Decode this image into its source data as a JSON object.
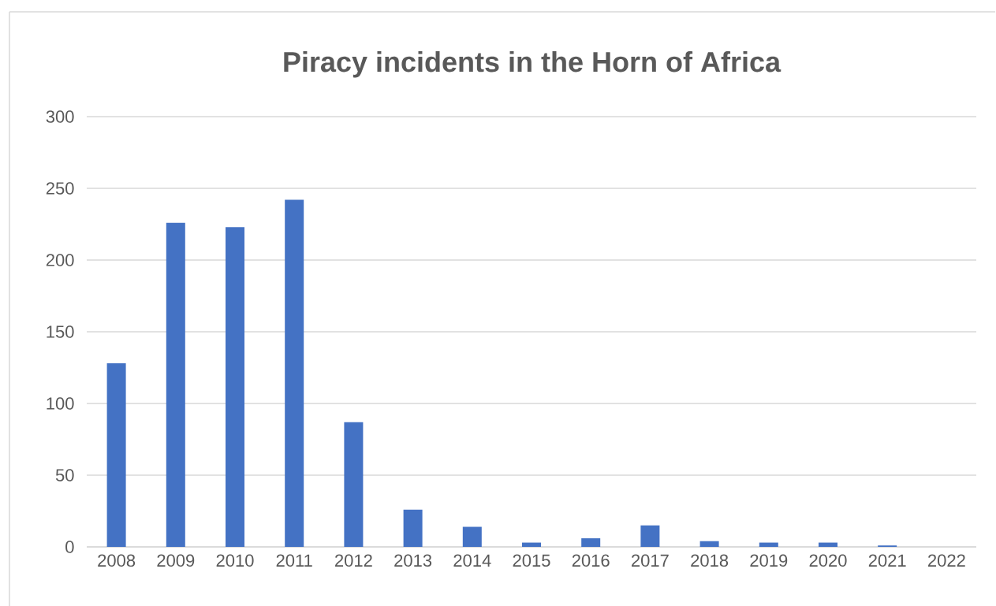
{
  "chart_data": {
    "type": "bar",
    "title": "Piracy incidents in the Horn of Africa",
    "categories": [
      "2008",
      "2009",
      "2010",
      "2011",
      "2012",
      "2013",
      "2014",
      "2015",
      "2016",
      "2017",
      "2018",
      "2019",
      "2020",
      "2021",
      "2022"
    ],
    "values": [
      128,
      226,
      223,
      242,
      87,
      26,
      14,
      3,
      6,
      15,
      4,
      3,
      3,
      1,
      0
    ],
    "color": "#4472c4",
    "ylim": [
      0,
      300
    ],
    "yticks": [
      0,
      50,
      100,
      150,
      200,
      250,
      300
    ],
    "grid": "y"
  }
}
